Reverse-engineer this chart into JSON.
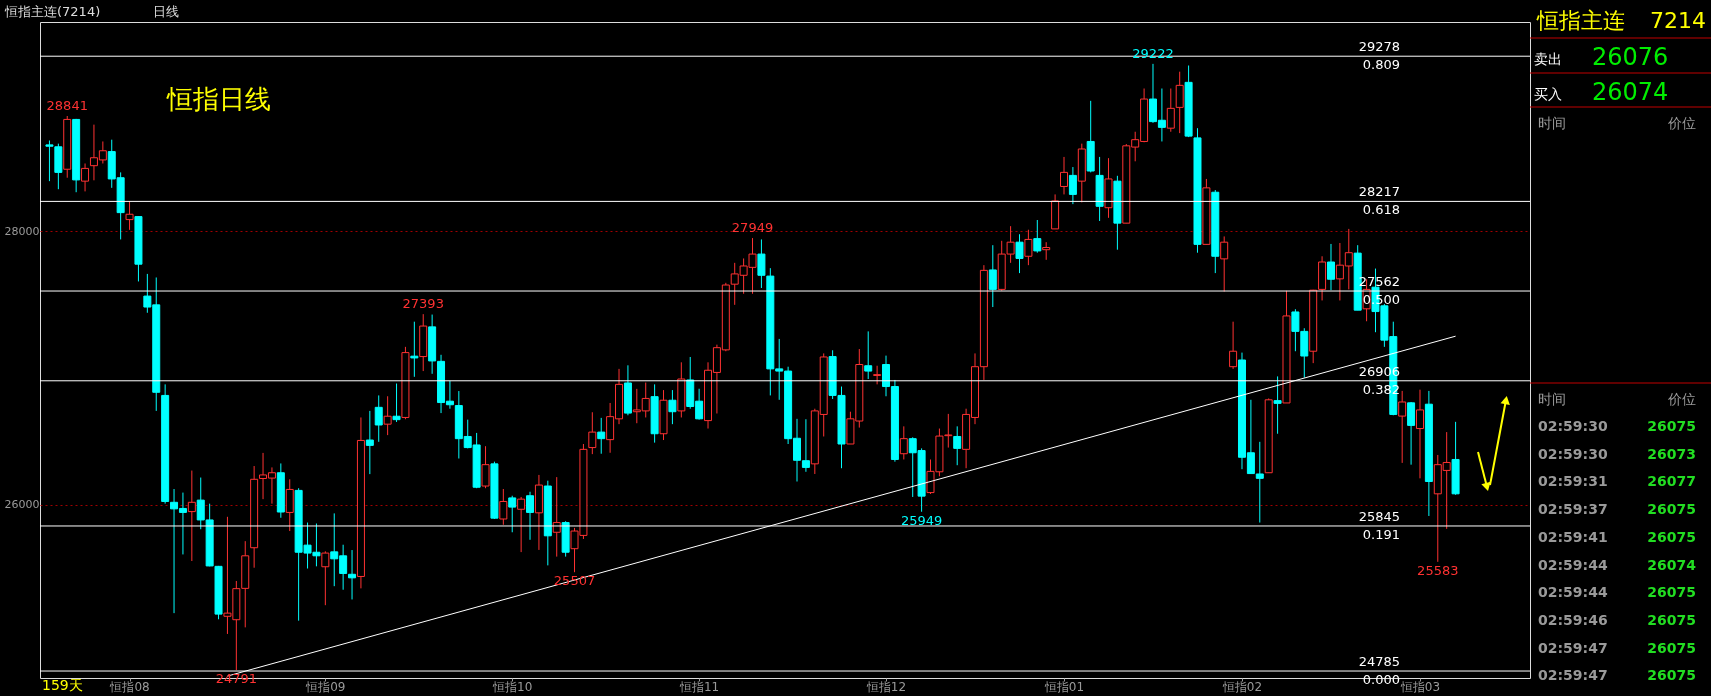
{
  "chart_data": {
    "type": "candlestick",
    "title": "恒指日线",
    "categories": [
      null,
      null,
      null,
      null,
      null,
      null,
      null,
      null,
      null,
      "恒指08",
      null,
      null,
      null,
      null,
      null,
      null,
      null,
      null,
      null,
      null,
      null,
      null,
      null,
      null,
      null,
      null,
      null,
      null,
      null,
      null,
      null,
      "恒指09",
      null,
      null,
      null,
      null,
      null,
      null,
      null,
      null,
      null,
      null,
      null,
      null,
      null,
      null,
      null,
      null,
      null,
      null,
      null,
      null,
      "恒指10",
      null,
      null,
      null,
      null,
      null,
      null,
      null,
      null,
      null,
      null,
      null,
      null,
      null,
      null,
      null,
      null,
      null,
      null,
      null,
      null,
      "恒指11",
      null,
      null,
      null,
      null,
      null,
      null,
      null,
      null,
      null,
      null,
      null,
      null,
      null,
      null,
      null,
      null,
      null,
      null,
      null,
      null,
      "恒指12",
      null,
      null,
      null,
      null,
      null,
      null,
      null,
      null,
      null,
      null,
      null,
      null,
      null,
      null,
      null,
      null,
      null,
      null,
      null,
      "恒指01",
      null,
      null,
      null,
      null,
      null,
      null,
      null,
      null,
      null,
      null,
      null,
      null,
      null,
      null,
      null,
      null,
      null,
      null,
      null,
      "恒指02",
      null,
      null,
      null,
      null,
      null,
      null,
      null,
      null,
      null,
      null,
      null,
      null,
      null,
      null,
      null,
      null,
      null,
      null,
      null,
      "恒指03",
      null,
      null,
      null,
      null
    ],
    "ohlc": [
      [
        28630,
        28662,
        28365,
        28620
      ],
      [
        28616,
        28639,
        28306,
        28429
      ],
      [
        28452,
        28841,
        28390,
        28816
      ],
      [
        28816,
        28820,
        28284,
        28374
      ],
      [
        28365,
        28494,
        28290,
        28458
      ],
      [
        28478,
        28778,
        28371,
        28536
      ],
      [
        28520,
        28655,
        28494,
        28587
      ],
      [
        28581,
        28668,
        28316,
        28381
      ],
      [
        28390,
        28429,
        27939,
        28135
      ],
      [
        28084,
        28219,
        28009,
        28123
      ],
      [
        28106,
        28106,
        27632,
        27758
      ],
      [
        27525,
        27687,
        27403,
        27445
      ],
      [
        27461,
        27661,
        26686,
        26822
      ],
      [
        26799,
        26880,
        26008,
        26024
      ],
      [
        26018,
        26115,
        25208,
        25970
      ],
      [
        25973,
        26089,
        25637,
        25944
      ],
      [
        25950,
        26250,
        25589,
        26018
      ],
      [
        26034,
        26199,
        25821,
        25889
      ],
      [
        25889,
        26008,
        25550,
        25553
      ],
      [
        25550,
        25553,
        25163,
        25201
      ],
      [
        25185,
        25912,
        25056,
        25208
      ],
      [
        25160,
        25443,
        24791,
        25387
      ],
      [
        25389,
        25734,
        25104,
        25627
      ],
      [
        25686,
        26283,
        25540,
        26186
      ],
      [
        26192,
        26379,
        26041,
        26218
      ],
      [
        26195,
        26273,
        26008,
        26234
      ],
      [
        26234,
        26302,
        25905,
        25947
      ],
      [
        25944,
        26186,
        25808,
        26112
      ],
      [
        26105,
        26121,
        25153,
        25653
      ],
      [
        25705,
        25870,
        25534,
        25647
      ],
      [
        25653,
        25863,
        25550,
        25627
      ],
      [
        25547,
        25660,
        25266,
        25647
      ],
      [
        25656,
        25937,
        25405,
        25605
      ],
      [
        25627,
        25708,
        25379,
        25498
      ],
      [
        25492,
        25669,
        25308,
        25466
      ],
      [
        25476,
        26638,
        25389,
        26470
      ],
      [
        26473,
        26686,
        26224,
        26434
      ],
      [
        26712,
        26799,
        26460,
        26583
      ],
      [
        26589,
        26793,
        26509,
        26647
      ],
      [
        26647,
        26886,
        26605,
        26622
      ],
      [
        26638,
        27154,
        26625,
        27112
      ],
      [
        27086,
        27338,
        26935,
        27073
      ],
      [
        27083,
        27393,
        26977,
        27306
      ],
      [
        27300,
        27390,
        26957,
        27051
      ],
      [
        27048,
        27096,
        26670,
        26747
      ],
      [
        26757,
        26906,
        26702,
        26731
      ],
      [
        26725,
        26831,
        26338,
        26483
      ],
      [
        26499,
        26622,
        26412,
        26418
      ],
      [
        26437,
        26525,
        26121,
        26128
      ],
      [
        26137,
        26428,
        26121,
        26293
      ],
      [
        26299,
        26315,
        25896,
        25902
      ],
      [
        25896,
        26115,
        25854,
        26024
      ],
      [
        26050,
        26066,
        25799,
        25983
      ],
      [
        25967,
        26057,
        25654,
        26041
      ],
      [
        26066,
        26095,
        25744,
        25944
      ],
      [
        25941,
        26218,
        25670,
        26144
      ],
      [
        26137,
        26176,
        25557,
        25773
      ],
      [
        25799,
        26202,
        25621,
        25870
      ],
      [
        25870,
        25880,
        25621,
        25653
      ],
      [
        25679,
        25831,
        25507,
        25808
      ],
      [
        25776,
        26444,
        25750,
        26405
      ],
      [
        26418,
        26676,
        26370,
        26531
      ],
      [
        26531,
        26635,
        26373,
        26483
      ],
      [
        26476,
        26744,
        26380,
        26644
      ],
      [
        26628,
        26993,
        26589,
        26880
      ],
      [
        26890,
        27019,
        26654,
        26670
      ],
      [
        26680,
        26847,
        26596,
        26693
      ],
      [
        26686,
        26893,
        26638,
        26777
      ],
      [
        26790,
        26880,
        26454,
        26519
      ],
      [
        26519,
        26838,
        26473,
        26764
      ],
      [
        26764,
        26838,
        26589,
        26680
      ],
      [
        26686,
        27041,
        26638,
        26919
      ],
      [
        26912,
        27080,
        26702,
        26718
      ],
      [
        26757,
        26848,
        26622,
        26628
      ],
      [
        26615,
        27041,
        26557,
        26983
      ],
      [
        26967,
        27170,
        26667,
        27148
      ],
      [
        27132,
        27622,
        27122,
        27606
      ],
      [
        27612,
        27768,
        27461,
        27687
      ],
      [
        27677,
        27800,
        27542,
        27745
      ],
      [
        27735,
        27949,
        27542,
        27832
      ],
      [
        27832,
        27939,
        27584,
        27677
      ],
      [
        27671,
        27729,
        26799,
        26993
      ],
      [
        26993,
        27212,
        26767,
        26977
      ],
      [
        26977,
        27009,
        26444,
        26483
      ],
      [
        26486,
        26628,
        26170,
        26325
      ],
      [
        26322,
        26625,
        26241,
        26273
      ],
      [
        26299,
        26702,
        26225,
        26686
      ],
      [
        26660,
        27106,
        26499,
        27080
      ],
      [
        27083,
        27129,
        26773,
        26799
      ],
      [
        26799,
        26864,
        26267,
        26444
      ],
      [
        26444,
        26680,
        26444,
        26628
      ],
      [
        26612,
        27138,
        26564,
        27025
      ],
      [
        27016,
        27267,
        26919,
        26977
      ],
      [
        26945,
        27016,
        26880,
        26951
      ],
      [
        27025,
        27090,
        26793,
        26864
      ],
      [
        26864,
        26912,
        26315,
        26331
      ],
      [
        26373,
        26573,
        26331,
        26483
      ],
      [
        26483,
        26493,
        26057,
        26380
      ],
      [
        26396,
        26412,
        25949,
        26063
      ],
      [
        26089,
        26331,
        26079,
        26244
      ],
      [
        26241,
        26557,
        26208,
        26502
      ],
      [
        26505,
        26664,
        26418,
        26510
      ],
      [
        26499,
        26573,
        26289,
        26412
      ],
      [
        26405,
        26702,
        26267,
        26660
      ],
      [
        26638,
        27106,
        26589,
        27009
      ],
      [
        27009,
        27751,
        26912,
        27713
      ],
      [
        27716,
        27897,
        27445,
        27574
      ],
      [
        27574,
        27929,
        27564,
        27832
      ],
      [
        27832,
        28036,
        27768,
        27919
      ],
      [
        27919,
        27977,
        27693,
        27800
      ],
      [
        27816,
        28010,
        27751,
        27939
      ],
      [
        27945,
        28081,
        27842,
        27855
      ],
      [
        27864,
        27919,
        27790,
        27880
      ],
      [
        28016,
        28268,
        28016,
        28220
      ],
      [
        28326,
        28542,
        28268,
        28429
      ],
      [
        28407,
        28468,
        28197,
        28268
      ],
      [
        28365,
        28639,
        28210,
        28600
      ],
      [
        28655,
        28952,
        28429,
        28439
      ],
      [
        28407,
        28542,
        28074,
        28181
      ],
      [
        28171,
        28533,
        28097,
        28381
      ],
      [
        28365,
        28404,
        27864,
        28058
      ],
      [
        28058,
        28636,
        28058,
        28623
      ],
      [
        28614,
        28726,
        28510,
        28668
      ],
      [
        28655,
        29042,
        28649,
        28965
      ],
      [
        28965,
        29222,
        28791,
        28800
      ],
      [
        28810,
        29042,
        28655,
        28758
      ],
      [
        28752,
        29042,
        28726,
        28897
      ],
      [
        28904,
        29165,
        28716,
        29065
      ],
      [
        29087,
        29210,
        28687,
        28694
      ],
      [
        28681,
        28752,
        27842,
        27903
      ],
      [
        27903,
        28381,
        27903,
        28316
      ],
      [
        28284,
        28300,
        27693,
        27816
      ],
      [
        27797,
        27961,
        27558,
        27919
      ],
      [
        27009,
        27338,
        26993,
        27122
      ],
      [
        27058,
        27112,
        26260,
        26347
      ],
      [
        26380,
        26767,
        26228,
        26228
      ],
      [
        26225,
        26460,
        25870,
        26193
      ],
      [
        26234,
        26777,
        26234,
        26767
      ],
      [
        26761,
        26938,
        26519,
        26741
      ],
      [
        26744,
        27564,
        26744,
        27380
      ],
      [
        27409,
        27429,
        27122,
        27267
      ],
      [
        27267,
        27290,
        26929,
        27087
      ],
      [
        27122,
        27571,
        27035,
        27568
      ],
      [
        27574,
        27816,
        27493,
        27774
      ],
      [
        27774,
        27906,
        27568,
        27648
      ],
      [
        27651,
        27913,
        27493,
        27751
      ],
      [
        27745,
        28016,
        27574,
        27842
      ],
      [
        27839,
        27897,
        27422,
        27422
      ],
      [
        27432,
        27648,
        27341,
        27574
      ],
      [
        27590,
        27726,
        27261,
        27412
      ],
      [
        27454,
        27467,
        27154,
        27203
      ],
      [
        27229,
        27338,
        26654,
        26660
      ],
      [
        26648,
        26832,
        26306,
        26751
      ],
      [
        26745,
        26751,
        26293,
        26580
      ],
      [
        26557,
        26841,
        26193,
        26693
      ],
      [
        26735,
        26832,
        25918,
        26170
      ],
      [
        26080,
        26364,
        25583,
        26293
      ],
      [
        26251,
        26531,
        25824,
        26309
      ],
      [
        26331,
        26606,
        26073,
        26080
      ]
    ],
    "colors": [
      "#00ffff",
      "#00ffff",
      "#ff3232",
      "#00ffff",
      "#ff3232",
      "#ff3232",
      "#ff3232",
      "#00ffff",
      "#00ffff",
      "#ff3232",
      "#00ffff",
      "#00ffff",
      "#00ffff",
      "#00ffff",
      "#00ffff",
      "#00ffff",
      "#ff3232",
      "#00ffff",
      "#00ffff",
      "#00ffff",
      "#ff3232",
      "#ff3232",
      "#ff3232",
      "#ff3232",
      "#ff3232",
      "#ff3232",
      "#00ffff",
      "#ff3232",
      "#00ffff",
      "#00ffff",
      "#00ffff",
      "#ff3232",
      "#00ffff",
      "#00ffff",
      "#00ffff",
      "#ff3232",
      "#00ffff",
      "#00ffff",
      "#ff3232",
      "#00ffff",
      "#ff3232",
      "#00ffff",
      "#ff3232",
      "#00ffff",
      "#00ffff",
      "#00ffff",
      "#00ffff",
      "#00ffff",
      "#00ffff",
      "#ff3232",
      "#00ffff",
      "#ff3232",
      "#00ffff",
      "#ff3232",
      "#00ffff",
      "#ff3232",
      "#00ffff",
      "#ff3232",
      "#00ffff",
      "#ff3232",
      "#ff3232",
      "#ff3232",
      "#00ffff",
      "#ff3232",
      "#ff3232",
      "#00ffff",
      "#ff3232",
      "#ff3232",
      "#00ffff",
      "#ff3232",
      "#00ffff",
      "#ff3232",
      "#00ffff",
      "#00ffff",
      "#ff3232",
      "#ff3232",
      "#ff3232",
      "#ff3232",
      "#ff3232",
      "#ff3232",
      "#00ffff",
      "#00ffff",
      "#00ffff",
      "#00ffff",
      "#00ffff",
      "#00ffff",
      "#ff3232",
      "#ff3232",
      "#00ffff",
      "#00ffff",
      "#ff3232",
      "#ff3232",
      "#00ffff",
      "#ff3232",
      "#00ffff",
      "#00ffff",
      "#ff3232",
      "#00ffff",
      "#00ffff",
      "#ff3232",
      "#ff3232",
      "#ff3232",
      "#00ffff",
      "#ff3232",
      "#ff3232",
      "#ff3232",
      "#00ffff",
      "#ff3232",
      "#ff3232",
      "#00ffff",
      "#ff3232",
      "#00ffff",
      "#ff3232",
      "#ff3232",
      "#ff3232",
      "#00ffff",
      "#ff3232",
      "#00ffff",
      "#00ffff",
      "#ff3232",
      "#00ffff",
      "#ff3232",
      "#ff3232",
      "#ff3232",
      "#00ffff",
      "#00ffff",
      "#ff3232",
      "#ff3232",
      "#00ffff",
      "#00ffff",
      "#ff3232",
      "#00ffff",
      "#ff3232",
      "#ff3232",
      "#00ffff",
      "#00ffff",
      "#00ffff",
      "#ff3232",
      "#00ffff",
      "#ff3232",
      "#00ffff",
      "#00ffff",
      "#ff3232",
      "#ff3232",
      "#00ffff",
      "#ff3232",
      "#ff3232",
      "#00ffff",
      "#ff3232",
      "#00ffff",
      "#00ffff",
      "#00ffff",
      "#ff3232",
      "#00ffff",
      "#ff3232",
      "#00ffff",
      "#ff3232",
      "#ff3232",
      "#00ffff"
    ],
    "ylim": [
      24734,
      29528
    ],
    "yticks": [
      26000,
      28000
    ],
    "grid": "y",
    "series": [
      {
        "type": "line",
        "color": "#ffffff",
        "values": [
          null,
          null,
          null,
          null,
          null,
          null,
          null,
          null,
          null,
          null,
          null,
          null,
          null,
          null,
          null,
          null,
          null,
          null,
          null,
          null,
          24748,
          null,
          null,
          null,
          null,
          null,
          null,
          null,
          null,
          null,
          null,
          null,
          null,
          null,
          null,
          null,
          null,
          null,
          null,
          null,
          null,
          null,
          null,
          null,
          null,
          null,
          null,
          null,
          null,
          null,
          null,
          null,
          null,
          null,
          null,
          null,
          null,
          null,
          null,
          null,
          null,
          null,
          null,
          null,
          null,
          null,
          null,
          null,
          null,
          null,
          null,
          null,
          null,
          null,
          null,
          null,
          null,
          null,
          null,
          null,
          null,
          null,
          null,
          null,
          null,
          null,
          null,
          null,
          null,
          null,
          null,
          null,
          null,
          null,
          null,
          null,
          null,
          null,
          null,
          null,
          null,
          null,
          null,
          null,
          null,
          null,
          null,
          null,
          null,
          null,
          null,
          null,
          null,
          null,
          null,
          null,
          null,
          null,
          null,
          null,
          null,
          null,
          null,
          null,
          null,
          null,
          null,
          null,
          null,
          null,
          null,
          null,
          null,
          null,
          null,
          null,
          null,
          null,
          null,
          null,
          null,
          null,
          null,
          null,
          null,
          null,
          null,
          null,
          null,
          null,
          null,
          null,
          null,
          null,
          null,
          null,
          null,
          null,
          27232
        ]
      }
    ],
    "ref_lines": [
      {
        "axis": "y",
        "value": 29278,
        "label": "29278",
        "color": "#ffffff"
      },
      {
        "axis": "y",
        "value": 28217,
        "label": "28217",
        "color": "#ffffff"
      },
      {
        "axis": "y",
        "value": 27562,
        "label": "27562",
        "color": "#ffffff"
      },
      {
        "axis": "y",
        "value": 26906,
        "label": "26906",
        "color": "#ffffff"
      },
      {
        "axis": "y",
        "value": 25845,
        "label": "25845",
        "color": "#ffffff"
      },
      {
        "axis": "y",
        "value": 24785,
        "label": "24785",
        "color": "#ffffff"
      }
    ],
    "annotations": [
      "恒指主连(7214)",
      "日线",
      "159天",
      "恒指主连",
      "7214",
      "卖出",
      "26076",
      "买入",
      "26074",
      "时间",
      "价位",
      "时间",
      "价位",
      "02:59:30",
      "26075",
      "02:59:30",
      "26073",
      "02:59:31",
      "26077",
      "02:59:37",
      "26075",
      "02:59:41",
      "26075",
      "02:59:44",
      "26074",
      "02:59:44",
      "26075",
      "02:59:46",
      "26075",
      "02:59:47",
      "26075",
      "02:59:47",
      "26075",
      {
        "text": "0.809",
        "y": 29278
      },
      {
        "text": "0.618",
        "y": 28217
      },
      {
        "text": "0.500",
        "y": 27562
      },
      {
        "text": "0.382",
        "y": 26906
      },
      {
        "text": "0.191",
        "y": 25845
      },
      {
        "text": "0.000",
        "y": 24785
      },
      {
        "text": "28841",
        "y": 28841
      },
      {
        "text": "27393",
        "y": 27393
      },
      {
        "text": "27949",
        "y": 27949
      },
      {
        "text": "29222",
        "y": 29222
      },
      {
        "text": "24791",
        "y": 24791
      },
      {
        "text": "25507",
        "y": 25507
      },
      {
        "text": "25949",
        "y": 25949
      },
      {
        "text": "25583",
        "y": 25583
      }
    ]
  }
}
